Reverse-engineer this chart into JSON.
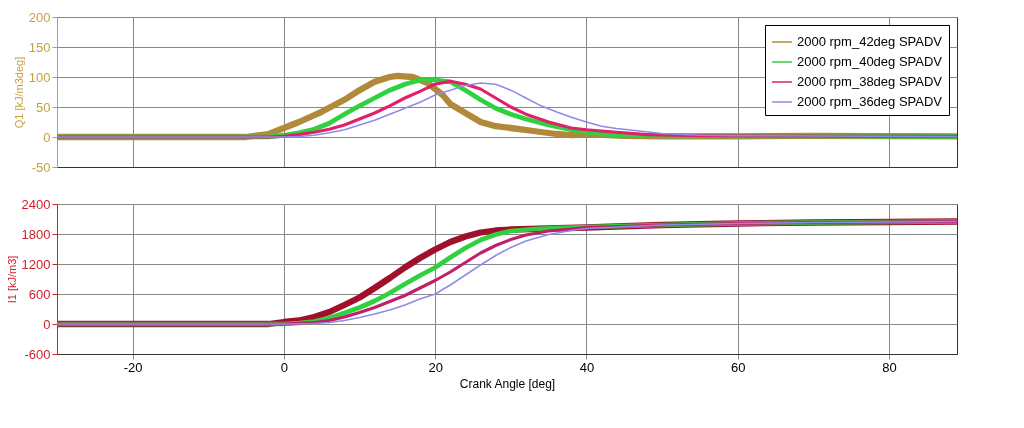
{
  "chart_data": [
    {
      "type": "line",
      "ylabel": "Q1 [kJ/m3deg]",
      "xlim": [
        -30,
        89
      ],
      "xticks": [
        -20,
        0,
        20,
        40,
        60,
        80
      ],
      "ylim": [
        -50,
        200
      ],
      "yticks": [
        -50,
        0,
        50,
        100,
        150,
        200
      ],
      "grid": true,
      "legend": "top right",
      "tick_labels": "y",
      "line_style": "solid",
      "series": [
        {
          "name": "2000 rpm_42deg SPADV",
          "color": "#b08a3a",
          "x": [
            -30,
            -5,
            -2,
            0,
            2,
            5,
            8,
            10,
            12,
            14,
            15,
            17,
            19,
            21,
            22,
            24,
            26,
            28,
            30,
            33,
            36,
            38,
            40,
            45,
            50,
            60,
            70,
            89
          ],
          "values": [
            0,
            0,
            5,
            15,
            25,
            42,
            62,
            78,
            92,
            100,
            102,
            100,
            90,
            70,
            55,
            40,
            25,
            18,
            15,
            10,
            5,
            3,
            5,
            2,
            1,
            1,
            2,
            1
          ]
        },
        {
          "name": "2000 rpm_40deg SPADV",
          "color": "#30d040",
          "x": [
            -30,
            -2,
            0,
            2,
            4,
            6,
            8,
            10,
            12,
            14,
            16,
            18,
            20,
            22,
            24,
            26,
            28,
            30,
            32,
            35,
            38,
            40,
            43,
            46,
            50,
            60,
            70,
            89
          ],
          "values": [
            0,
            0,
            3,
            7,
            13,
            23,
            38,
            52,
            65,
            78,
            88,
            95,
            95,
            92,
            78,
            62,
            48,
            38,
            30,
            20,
            12,
            8,
            4,
            3,
            2,
            2,
            2,
            1
          ]
        },
        {
          "name": "2000 rpm_38deg SPADV",
          "color": "#e0206a",
          "x": [
            -30,
            -2,
            0,
            2,
            4,
            6,
            8,
            10,
            12,
            14,
            16,
            18,
            20,
            22,
            24,
            26,
            28,
            30,
            32,
            35,
            38,
            40,
            44,
            48,
            55,
            89
          ],
          "values": [
            0,
            0,
            1,
            4,
            8,
            13,
            20,
            30,
            40,
            52,
            65,
            76,
            88,
            93,
            88,
            80,
            65,
            50,
            38,
            25,
            15,
            12,
            8,
            4,
            2,
            1
          ]
        },
        {
          "name": "2000 rpm_36deg SPADV",
          "color": "#8c8ce8",
          "x": [
            -30,
            -2,
            0,
            2,
            4,
            6,
            8,
            10,
            12,
            14,
            16,
            18,
            20,
            22,
            24,
            26,
            28,
            30,
            32,
            34,
            36,
            38,
            40,
            42,
            44,
            47,
            50,
            55,
            60,
            89
          ],
          "values": [
            0,
            0,
            0,
            1,
            3,
            7,
            12,
            20,
            28,
            38,
            48,
            58,
            70,
            78,
            86,
            90,
            88,
            78,
            65,
            52,
            42,
            33,
            25,
            18,
            14,
            10,
            6,
            3,
            2,
            1
          ]
        }
      ]
    },
    {
      "type": "line",
      "xlabel": "Crank Angle [deg]",
      "ylabel": "I1 [kJ/m3]",
      "xlim": [
        -30,
        89
      ],
      "xticks": [
        -20,
        0,
        20,
        40,
        60,
        80
      ],
      "ylim": [
        -600,
        2400
      ],
      "yticks": [
        -600,
        0,
        600,
        1200,
        1800,
        2400
      ],
      "grid": true,
      "line_style": "solid",
      "series": [
        {
          "color": "#a0102a",
          "x": [
            -30,
            -2,
            0,
            2,
            4,
            6,
            8,
            10,
            12,
            14,
            16,
            18,
            20,
            22,
            24,
            26,
            28,
            30,
            35,
            40,
            50,
            60,
            70,
            80,
            89
          ],
          "values": [
            0,
            0,
            40,
            70,
            140,
            240,
            380,
            530,
            720,
            920,
            1130,
            1320,
            1490,
            1640,
            1750,
            1830,
            1870,
            1890,
            1910,
            1930,
            1980,
            2010,
            2030,
            2040,
            2050
          ]
        },
        {
          "color": "#30d040",
          "x": [
            -30,
            0,
            2,
            4,
            6,
            8,
            10,
            12,
            14,
            16,
            18,
            20,
            22,
            24,
            26,
            28,
            30,
            33,
            36,
            40,
            50,
            60,
            70,
            80,
            89
          ],
          "values": [
            0,
            0,
            20,
            50,
            120,
            220,
            330,
            460,
            620,
            800,
            970,
            1130,
            1330,
            1520,
            1680,
            1790,
            1860,
            1900,
            1920,
            1940,
            1980,
            2010,
            2030,
            2040,
            2050
          ]
        },
        {
          "color": "#c0206a",
          "x": [
            -30,
            0,
            4,
            6,
            8,
            10,
            12,
            14,
            16,
            18,
            20,
            22,
            24,
            26,
            28,
            30,
            32,
            35,
            38,
            40,
            50,
            60,
            70,
            80,
            89
          ],
          "values": [
            0,
            0,
            30,
            70,
            140,
            230,
            330,
            450,
            570,
            720,
            870,
            1040,
            1230,
            1420,
            1570,
            1690,
            1780,
            1860,
            1900,
            1930,
            1980,
            2010,
            2030,
            2040,
            2050
          ]
        },
        {
          "color": "#8c8ce8",
          "x": [
            -30,
            0,
            4,
            6,
            8,
            10,
            12,
            14,
            16,
            18,
            20,
            22,
            24,
            26,
            28,
            30,
            32,
            35,
            38,
            40,
            44,
            50,
            60,
            70,
            80,
            89
          ],
          "values": [
            0,
            0,
            10,
            30,
            70,
            130,
            200,
            280,
            380,
            500,
            600,
            780,
            980,
            1180,
            1370,
            1530,
            1660,
            1790,
            1870,
            1910,
            1940,
            1980,
            2010,
            2030,
            2040,
            2050
          ]
        }
      ]
    }
  ]
}
